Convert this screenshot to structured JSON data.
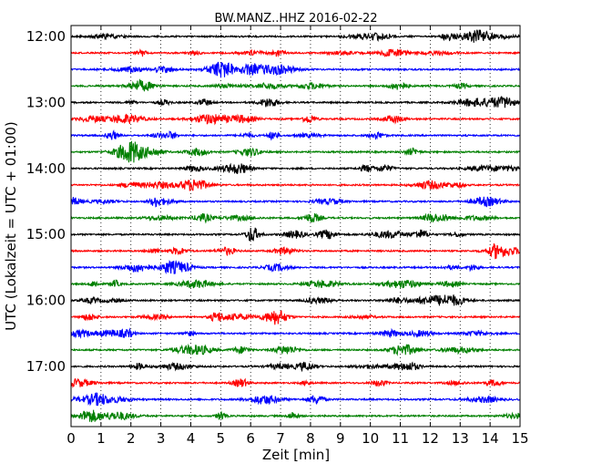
{
  "chart_data": {
    "type": "line",
    "subtype": "dayplot",
    "title": "BW.MANZ..HHZ 2016-02-22",
    "xlabel": "Zeit  [min]",
    "ylabel": "UTC (Lokalzeit = UTC + 01:00)",
    "xlim": [
      0,
      15
    ],
    "x_ticks": [
      0,
      1,
      2,
      3,
      4,
      5,
      6,
      7,
      8,
      9,
      10,
      11,
      12,
      13,
      14,
      15
    ],
    "x_tick_labels": [
      "0",
      "1",
      "2",
      "3",
      "4",
      "5",
      "6",
      "7",
      "8",
      "9",
      "10",
      "11",
      "12",
      "13",
      "14",
      "15"
    ],
    "y_tick_labels": [
      "12:00",
      "13:00",
      "14:00",
      "15:00",
      "16:00",
      "17:00"
    ],
    "grid": "vertical dotted",
    "trace_colors": [
      "#000000",
      "#ff0000",
      "#0000ff",
      "#008000"
    ],
    "traces": [
      {
        "start": "12:00",
        "color": "#000000"
      },
      {
        "start": "12:15",
        "color": "#ff0000"
      },
      {
        "start": "12:30",
        "color": "#0000ff"
      },
      {
        "start": "12:45",
        "color": "#008000"
      },
      {
        "start": "13:00",
        "color": "#000000"
      },
      {
        "start": "13:15",
        "color": "#ff0000"
      },
      {
        "start": "13:30",
        "color": "#0000ff"
      },
      {
        "start": "13:45",
        "color": "#008000"
      },
      {
        "start": "14:00",
        "color": "#000000"
      },
      {
        "start": "14:15",
        "color": "#ff0000"
      },
      {
        "start": "14:30",
        "color": "#0000ff"
      },
      {
        "start": "14:45",
        "color": "#008000"
      },
      {
        "start": "15:00",
        "color": "#000000"
      },
      {
        "start": "15:15",
        "color": "#ff0000"
      },
      {
        "start": "15:30",
        "color": "#0000ff"
      },
      {
        "start": "15:45",
        "color": "#008000"
      },
      {
        "start": "16:00",
        "color": "#000000"
      },
      {
        "start": "16:15",
        "color": "#ff0000"
      },
      {
        "start": "16:30",
        "color": "#0000ff"
      },
      {
        "start": "16:45",
        "color": "#008000"
      },
      {
        "start": "17:00",
        "color": "#000000"
      },
      {
        "start": "17:15",
        "color": "#ff0000"
      },
      {
        "start": "17:30",
        "color": "#0000ff"
      },
      {
        "start": "17:45",
        "color": "#008000"
      }
    ]
  }
}
